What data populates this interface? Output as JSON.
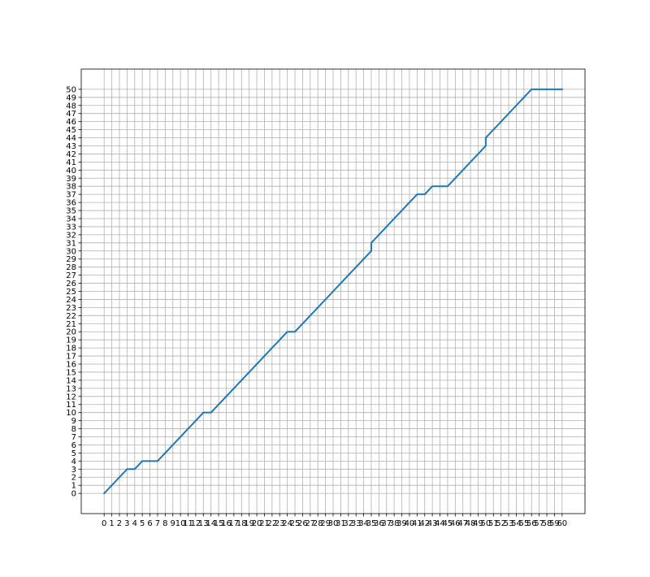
{
  "chart_data": {
    "type": "line",
    "title": "",
    "xlabel": "",
    "ylabel": "",
    "xlim": [
      -3,
      63
    ],
    "ylim": [
      -2.5,
      52.5
    ],
    "x_ticks": [
      0,
      1,
      2,
      3,
      4,
      5,
      6,
      7,
      8,
      9,
      10,
      11,
      12,
      13,
      14,
      15,
      16,
      17,
      18,
      19,
      20,
      21,
      22,
      23,
      24,
      25,
      26,
      27,
      28,
      29,
      30,
      31,
      32,
      33,
      34,
      35,
      36,
      37,
      38,
      39,
      40,
      41,
      42,
      43,
      44,
      45,
      46,
      47,
      48,
      49,
      50,
      51,
      52,
      53,
      54,
      55,
      56,
      57,
      58,
      59,
      60
    ],
    "y_ticks": [
      0,
      1,
      2,
      3,
      4,
      5,
      6,
      7,
      8,
      9,
      10,
      11,
      12,
      13,
      14,
      15,
      16,
      17,
      18,
      19,
      20,
      21,
      22,
      23,
      24,
      25,
      26,
      27,
      28,
      29,
      30,
      31,
      32,
      33,
      34,
      35,
      36,
      37,
      38,
      39,
      40,
      41,
      42,
      43,
      44,
      45,
      46,
      47,
      48,
      49,
      50
    ],
    "grid": true,
    "series": [
      {
        "color": "#1f77b4",
        "x": [
          0,
          1,
          2,
          3,
          4,
          5,
          6,
          7,
          8,
          9,
          10,
          11,
          12,
          13,
          14,
          15,
          16,
          17,
          18,
          19,
          20,
          21,
          22,
          23,
          24,
          25,
          26,
          27,
          28,
          29,
          30,
          31,
          32,
          33,
          34,
          35,
          35,
          36,
          37,
          38,
          39,
          40,
          41,
          42,
          43,
          44,
          45,
          46,
          47,
          48,
          49,
          50,
          50,
          51,
          52,
          53,
          54,
          55,
          56,
          57,
          58,
          59,
          60
        ],
        "y": [
          0,
          1,
          2,
          3,
          3,
          4,
          4,
          4,
          5,
          6,
          7,
          8,
          9,
          10,
          10,
          11,
          12,
          13,
          14,
          15,
          16,
          17,
          18,
          19,
          20,
          20,
          21,
          22,
          23,
          24,
          25,
          26,
          27,
          28,
          29,
          30,
          31,
          32,
          33,
          34,
          35,
          36,
          37,
          37,
          38,
          38,
          38,
          39,
          40,
          41,
          42,
          43,
          44,
          45,
          46,
          47,
          48,
          49,
          50,
          50,
          50,
          50,
          50
        ]
      }
    ]
  }
}
